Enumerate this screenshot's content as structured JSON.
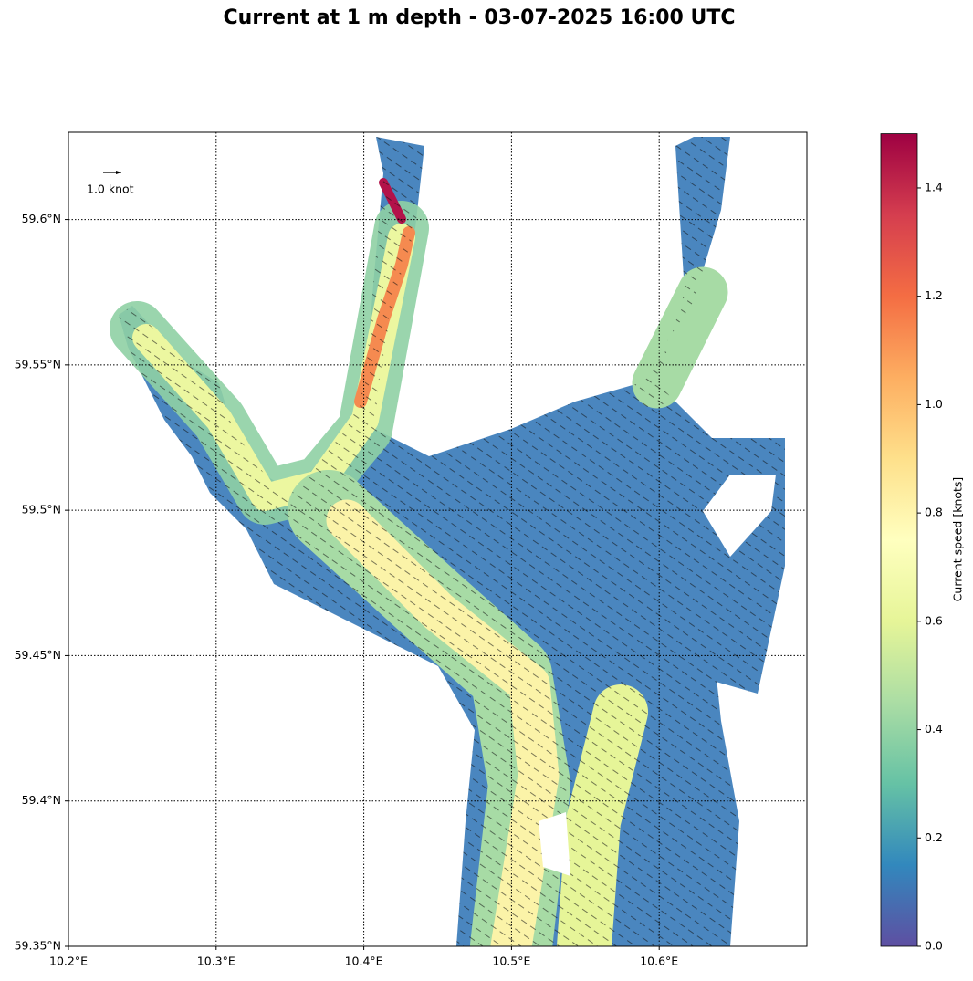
{
  "chart_data": {
    "type": "quiver-map",
    "title": "Current at 1 m depth - 03-07-2025 16:00 UTC",
    "xlim": [
      10.2,
      10.7
    ],
    "ylim": [
      59.35,
      59.63
    ],
    "xticks": [
      {
        "value": 10.2,
        "label": "10.2°E"
      },
      {
        "value": 10.3,
        "label": "10.3°E"
      },
      {
        "value": 10.4,
        "label": "10.4°E"
      },
      {
        "value": 10.5,
        "label": "10.5°E"
      },
      {
        "value": 10.6,
        "label": "10.6°E"
      }
    ],
    "yticks": [
      {
        "value": 59.35,
        "label": "59.35°N"
      },
      {
        "value": 59.4,
        "label": "59.4°N"
      },
      {
        "value": 59.45,
        "label": "59.45°N"
      },
      {
        "value": 59.5,
        "label": "59.5°N"
      },
      {
        "value": 59.55,
        "label": "59.55°N"
      },
      {
        "value": 59.6,
        "label": "59.6°N"
      }
    ],
    "grid": true,
    "quiver_key": {
      "value": 1,
      "label": "1.0 knot"
    },
    "colorbar": {
      "label": "Current speed [knots]",
      "lim": [
        0,
        1.5
      ],
      "ticks": [
        {
          "value": 0,
          "label": "0.0"
        },
        0.2,
        0.4,
        0.6,
        0.8,
        {
          "value": 1,
          "label": "1.0"
        },
        1.2,
        1.4
      ]
    }
  }
}
